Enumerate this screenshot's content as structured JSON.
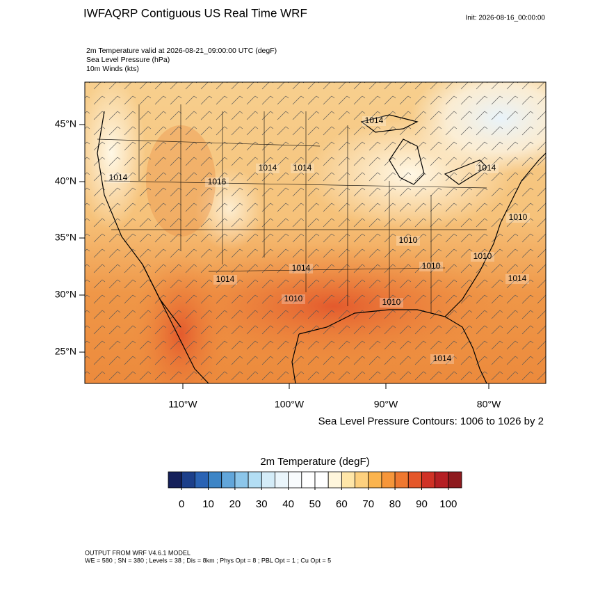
{
  "header": {
    "title": "IWFAQRP Contiguous US Real Time WRF",
    "init": "Init: 2026-08-16_00:00:00",
    "fields": [
      "2m Temperature valid at 2026-08-21_09:00:00 UTC   (degF)",
      "Sea Level Pressure   (hPa)",
      "10m Winds   (kts)"
    ]
  },
  "map": {
    "lat_labels": [
      "45°N",
      "40°N",
      "35°N",
      "30°N",
      "25°N"
    ],
    "lon_labels": [
      "110°W",
      "100°W",
      "90°W",
      "80°W"
    ],
    "contour_labels": [
      "1014",
      "1014",
      "1014",
      "1014",
      "1016",
      "1014",
      "1010",
      "1010",
      "1010",
      "1014",
      "1010",
      "1014",
      "1014",
      "1010",
      "1010",
      "1014"
    ],
    "contour_note": "Sea Level Pressure Contours: 1006 to 1026 by 2"
  },
  "colorbar": {
    "title": "2m Temperature  (degF)",
    "colors": [
      "#15205a",
      "#1c3f8a",
      "#2a63b4",
      "#3d85c6",
      "#62a6da",
      "#8cc6ea",
      "#b3def4",
      "#d4ecf8",
      "#eaf5fb",
      "#f8fbfd",
      "#ffffff",
      "#ffffff",
      "#fff6dc",
      "#ffe6a8",
      "#fdd07e",
      "#fbb44e",
      "#f6963a",
      "#ef7830",
      "#e4572a",
      "#d03226",
      "#b51f24",
      "#8e1a1e"
    ],
    "ticks": [
      0,
      10,
      20,
      30,
      40,
      50,
      60,
      70,
      80,
      90,
      100
    ]
  },
  "footer": {
    "lines": [
      "OUTPUT FROM WRF V4.6.1 MODEL",
      "WE = 580 ; SN = 380 ; Levels = 38 ; Dis = 8km ; Phys Opt = 8 ; PBL Opt = 1 ; Cu Opt = 5"
    ]
  }
}
